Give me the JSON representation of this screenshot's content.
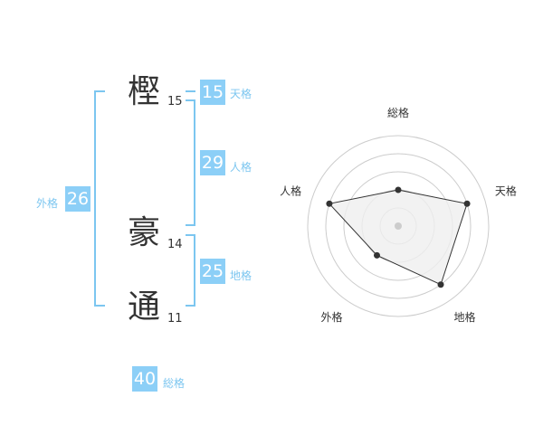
{
  "characters": [
    {
      "char": "樫",
      "strokes": "15"
    },
    {
      "char": "豪",
      "strokes": "14"
    },
    {
      "char": "通",
      "strokes": "11"
    }
  ],
  "fortunes": {
    "tenkaku": {
      "label": "天格",
      "value": "15"
    },
    "jinkaku": {
      "label": "人格",
      "value": "29"
    },
    "chikaku": {
      "label": "地格",
      "value": "25"
    },
    "gaikaku": {
      "label": "外格",
      "value": "26"
    },
    "soukaku": {
      "label": "総格",
      "value": "40"
    }
  },
  "chart_data": {
    "type": "radar",
    "axes": [
      "総格",
      "天格",
      "地格",
      "外格",
      "人格"
    ],
    "values": [
      2,
      4,
      4,
      2,
      4
    ],
    "range": [
      0,
      5
    ],
    "colors": {
      "fill": "#efefef",
      "line": "#333333",
      "grid": "#cccccc"
    }
  }
}
